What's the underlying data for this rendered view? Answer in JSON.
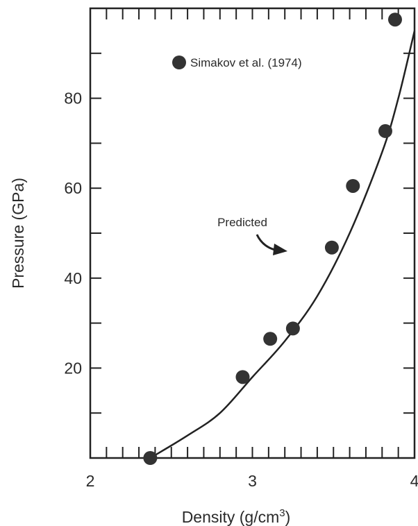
{
  "chart_data": {
    "type": "scatter",
    "xlabel": "Density (g/cm",
    "xlabel_sup": "3",
    "xlabel_close": ")",
    "ylabel": "Pressure (GPa)",
    "xlim": [
      2,
      4
    ],
    "ylim": [
      0,
      100
    ],
    "x_ticks": [
      2,
      3,
      4
    ],
    "x_tick_labels": [
      "2",
      "3",
      "4"
    ],
    "y_ticks": [
      20,
      40,
      60,
      80
    ],
    "y_tick_labels": [
      "20",
      "40",
      "60",
      "80"
    ],
    "grid": false,
    "legend_position": "top-left",
    "series": [
      {
        "name": "Simakov et al. (1974)",
        "kind": "points",
        "color": "#333333",
        "points": [
          [
            2.37,
            0
          ],
          [
            2.94,
            18
          ],
          [
            3.11,
            26.5
          ],
          [
            3.25,
            28.8
          ],
          [
            3.49,
            46.8
          ],
          [
            3.62,
            60.5
          ],
          [
            3.82,
            72.7
          ],
          [
            3.88,
            97.5
          ]
        ]
      }
    ],
    "curve": {
      "kind": "line",
      "color": "#222222",
      "points": [
        [
          2.37,
          0
        ],
        [
          2.6,
          5
        ],
        [
          2.8,
          10
        ],
        [
          3.0,
          18
        ],
        [
          3.2,
          26
        ],
        [
          3.4,
          36
        ],
        [
          3.6,
          50
        ],
        [
          3.8,
          68
        ],
        [
          3.9,
          80
        ],
        [
          4.0,
          95
        ]
      ]
    },
    "annotations": [
      {
        "text": "Predicted",
        "x": 3.25,
        "y": 51.5
      }
    ]
  }
}
